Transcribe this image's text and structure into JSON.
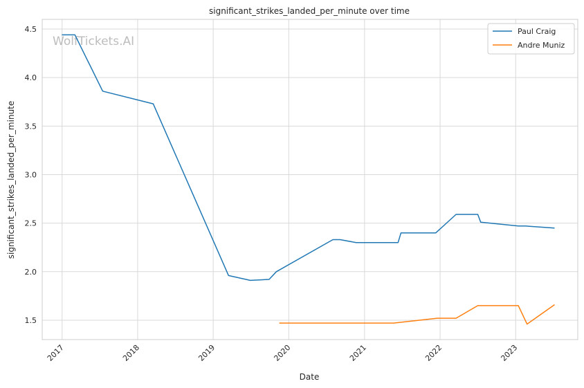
{
  "chart_data": {
    "type": "line",
    "title": "significant_strikes_landed_per_minute over time",
    "xlabel": "Date",
    "ylabel": "significant_strikes_landed_per_minute",
    "watermark": "WolfTickets.AI",
    "x_ticks": [
      "2017",
      "2018",
      "2019",
      "2020",
      "2021",
      "2022",
      "2023"
    ],
    "y_ticks": [
      "1.5",
      "2.0",
      "2.5",
      "3.0",
      "3.5",
      "4.0",
      "4.5"
    ],
    "ylim": [
      1.3,
      4.6
    ],
    "xlim": [
      "2016-09-27",
      "2023-10-28"
    ],
    "grid": true,
    "legend_position": "top-right",
    "colors": {
      "series_1": "#1f77b4",
      "series_2": "#ff7f0e",
      "grid": "#d9d9d9",
      "spine": "#cccccc"
    },
    "series": [
      {
        "name": "Paul Craig",
        "color": "#1f77b4",
        "points": [
          [
            "2016-12-31",
            4.44
          ],
          [
            "2017-03-04",
            4.44
          ],
          [
            "2017-07-16",
            3.86
          ],
          [
            "2018-03-17",
            3.73
          ],
          [
            "2019-03-16",
            1.96
          ],
          [
            "2019-06-29",
            1.91
          ],
          [
            "2019-09-28",
            1.92
          ],
          [
            "2019-11-02",
            2.0
          ],
          [
            "2020-08-01",
            2.33
          ],
          [
            "2020-09-05",
            2.33
          ],
          [
            "2020-11-21",
            2.3
          ],
          [
            "2021-06-12",
            2.3
          ],
          [
            "2021-06-26",
            2.4
          ],
          [
            "2021-12-11",
            2.4
          ],
          [
            "2022-03-19",
            2.59
          ],
          [
            "2022-07-02",
            2.59
          ],
          [
            "2022-07-16",
            2.51
          ],
          [
            "2023-01-14",
            2.47
          ],
          [
            "2023-02-18",
            2.47
          ],
          [
            "2023-07-08",
            2.45
          ]
        ]
      },
      {
        "name": "Andre Muniz",
        "color": "#ff7f0e",
        "points": [
          [
            "2019-11-16",
            1.47
          ],
          [
            "2020-11-21",
            1.47
          ],
          [
            "2021-05-22",
            1.47
          ],
          [
            "2021-12-18",
            1.52
          ],
          [
            "2022-03-19",
            1.52
          ],
          [
            "2022-07-02",
            1.65
          ],
          [
            "2023-01-14",
            1.65
          ],
          [
            "2023-02-25",
            1.46
          ],
          [
            "2023-07-08",
            1.66
          ]
        ]
      }
    ]
  }
}
